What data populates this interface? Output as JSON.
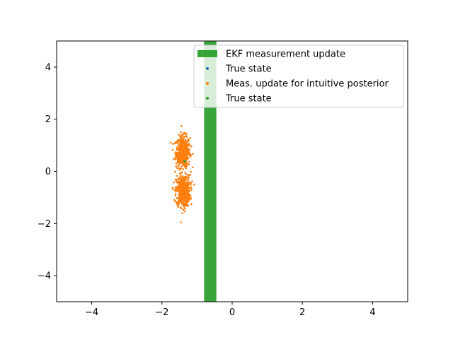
{
  "chart_data": {
    "type": "scatter",
    "xlim": [
      -5,
      5
    ],
    "ylim": [
      -5,
      5
    ],
    "x_ticks": [
      -4,
      -2,
      0,
      2,
      4
    ],
    "y_ticks": [
      -4,
      -2,
      0,
      2,
      4
    ],
    "x_tick_labels": [
      "−4",
      "−2",
      "0",
      "2",
      "4"
    ],
    "y_tick_labels": [
      "−4",
      "−2",
      "0",
      "2",
      "4"
    ],
    "grid": false,
    "legend_position": "top-right",
    "title": "",
    "xlabel": "",
    "ylabel": "",
    "band": {
      "name": "EKF measurement update",
      "x_range": [
        -0.8,
        -0.45
      ],
      "color": "#2ca02c"
    },
    "series": [
      {
        "name": "True state",
        "color": "#1f77b4",
        "points": []
      },
      {
        "name": "Meas. update for intuitive posterior",
        "color": "#ff7f0e",
        "clusters": [
          {
            "center": [
              -1.4,
              0.75
            ],
            "spread": [
              0.1,
              0.3
            ]
          },
          {
            "center": [
              -1.4,
              -0.75
            ],
            "spread": [
              0.1,
              0.3
            ]
          }
        ],
        "point_count": 1000
      },
      {
        "name": "True state",
        "color": "#2ca02c",
        "points": [
          [
            -1.35,
            0.38
          ]
        ]
      }
    ]
  }
}
